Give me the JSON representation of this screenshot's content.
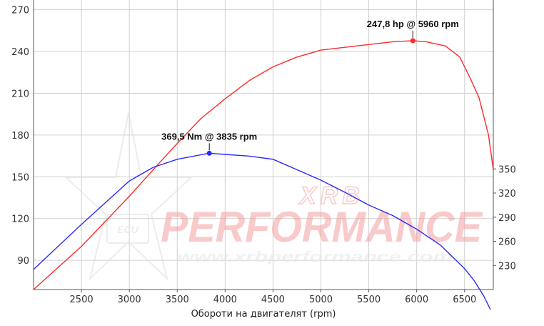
{
  "chart_data": {
    "type": "line",
    "xlabel": "Обороти на двигателят (rpm)",
    "x_ticks": [
      2500,
      3000,
      3500,
      4000,
      4500,
      5000,
      5500,
      6000,
      6500
    ],
    "xlim": [
      2000,
      6800
    ],
    "left_ticks": [
      90,
      120,
      150,
      180,
      210,
      240,
      270
    ],
    "left_ylim": [
      69,
      277
    ],
    "right_ticks": [
      230,
      260,
      290,
      320,
      350
    ],
    "right_ylim": [
      200,
      560
    ],
    "grid": true,
    "series": [
      {
        "axis": "left",
        "color": "#ff2a2a",
        "x": [
          2000,
          2500,
          3000,
          3300,
          3500,
          3750,
          4000,
          4250,
          4500,
          4750,
          5000,
          5250,
          5500,
          5750,
          5960,
          6100,
          6300,
          6450,
          6550,
          6650,
          6750,
          6800
        ],
        "y": [
          69,
          100,
          136,
          159,
          174,
          192,
          206,
          219,
          229,
          236,
          241,
          243,
          245,
          247,
          247.8,
          247,
          244,
          236,
          222,
          207,
          180,
          155
        ]
      },
      {
        "axis": "right",
        "color": "#2a2aff",
        "x": [
          2000,
          2500,
          3000,
          3250,
          3500,
          3835,
          4000,
          4250,
          4500,
          4750,
          5000,
          5250,
          5500,
          5750,
          6000,
          6250,
          6500,
          6600,
          6700,
          6770
        ],
        "y": [
          225,
          281,
          335,
          352,
          362,
          369.5,
          368,
          366,
          362,
          349,
          336,
          321,
          305,
          292,
          275,
          255,
          226,
          211,
          192,
          175
        ]
      }
    ],
    "annotations": [
      {
        "text": "247,8 hp @ 5960 rpm",
        "series": 0,
        "x": 5960,
        "y": 247.8
      },
      {
        "text": "369,5 Nm @ 3835 rpm",
        "series": 1,
        "x": 3835,
        "y": 369.5
      }
    ]
  },
  "watermark": {
    "brand_top": "XRB",
    "brand_main": "PERFORMANCE",
    "url": "www.xrbperformance.com",
    "badge": "ECU",
    "color": "#f4a0a0"
  }
}
